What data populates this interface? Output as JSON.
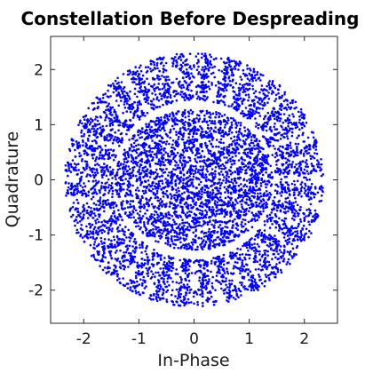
{
  "chart_data": {
    "type": "scatter",
    "title": "Constellation Before Despreading",
    "xlabel": "In-Phase",
    "ylabel": "Quadrature",
    "xlim": [
      -2.6,
      2.6
    ],
    "ylim": [
      -2.6,
      2.6
    ],
    "xticks": [
      -2,
      -1,
      0,
      1,
      2
    ],
    "yticks": [
      -2,
      -1,
      0,
      1,
      2
    ],
    "xtick_labels": [
      "-2",
      "-1",
      "0",
      "1",
      "2"
    ],
    "ytick_labels": [
      "-2",
      "-1",
      "0",
      "1",
      "2"
    ],
    "grid": false,
    "marker_color": "#0000ff",
    "series": [
      {
        "description_of_distribution": "inner cloud of points within radius ~1.3, outer ring of ~32 radial clusters between radius ~1.5 and ~2.3",
        "x": [
          0.05,
          -0.42,
          0.61,
          0.95,
          -0.88,
          0.22,
          -0.15,
          1.15,
          -1.12,
          0.34,
          -0.55,
          0.78,
          -0.71,
          0.1,
          -0.3,
          0.48,
          1.02,
          -0.98,
          0.0,
          0.66,
          -0.62,
          0.2,
          -0.2,
          1.2,
          -1.2,
          2.05,
          1.9,
          1.55,
          1.1,
          0.55,
          0.0,
          -0.55,
          -1.1,
          -1.55,
          -1.9,
          -2.05,
          -1.9,
          -1.55,
          -1.1,
          -0.55,
          0.0,
          0.55,
          1.1,
          1.55,
          1.9,
          2.15,
          2.1,
          1.95,
          1.75,
          1.45,
          1.15,
          0.78,
          0.4,
          -0.4,
          -0.78,
          -1.15,
          -1.45,
          -1.75,
          -1.95,
          -2.1,
          -2.15,
          -2.1,
          -1.95,
          -1.75,
          -1.45,
          -1.15,
          -0.78,
          -0.4,
          0.4,
          0.78,
          1.15,
          1.45,
          1.75,
          1.95,
          2.1
        ],
        "y": [
          0.02,
          0.35,
          -0.48,
          0.12,
          -0.2,
          0.85,
          -0.9,
          -0.35,
          0.4,
          0.6,
          -0.66,
          0.72,
          -0.74,
          -0.3,
          0.22,
          -0.1,
          0.55,
          0.05,
          1.1,
          -0.95,
          0.98,
          -1.18,
          0.18,
          0.3,
          -0.4,
          0.0,
          0.8,
          1.5,
          1.85,
          2.0,
          2.05,
          2.0,
          1.85,
          1.5,
          0.8,
          0.0,
          -0.8,
          -1.5,
          -1.85,
          -2.0,
          -2.05,
          -2.0,
          -1.85,
          -1.5,
          -0.8,
          0.42,
          0.6,
          1.0,
          1.3,
          1.7,
          1.95,
          2.1,
          2.2,
          2.2,
          2.1,
          1.95,
          1.7,
          1.3,
          1.0,
          0.6,
          0.42,
          -0.42,
          -1.0,
          -1.3,
          -1.7,
          -1.95,
          -2.1,
          -2.2,
          -2.2,
          -2.1,
          -1.95,
          -1.7,
          -1.3,
          -1.0,
          -0.6
        ]
      }
    ]
  }
}
